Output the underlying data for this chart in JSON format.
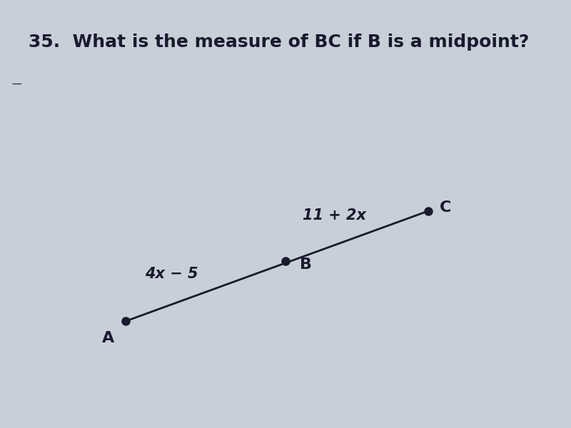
{
  "title": "35.  What is the measure of BC if B is a midpoint?",
  "title_fontsize": 18,
  "title_fontweight": "bold",
  "background_color": "#c8cfd8",
  "title_bg_color": "#ffffff",
  "point_A": [
    0.22,
    0.32
  ],
  "point_B": [
    0.5,
    0.5
  ],
  "point_C": [
    0.75,
    0.65
  ],
  "label_A": "A",
  "label_B": "B",
  "label_C": "C",
  "label_AB": "4x − 5",
  "label_BC": "11 + 2x",
  "line_color": "#1a1a2e",
  "dot_color": "#1a1a2e",
  "dot_size": 8,
  "text_color": "#1a1a2e",
  "label_fontsize": 15,
  "point_label_fontsize": 16
}
